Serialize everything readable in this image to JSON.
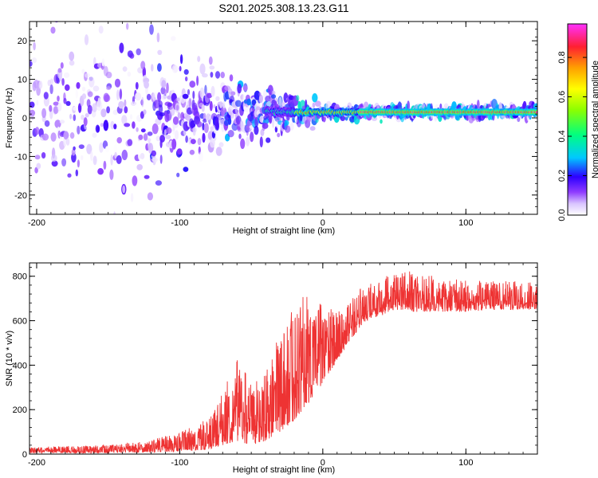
{
  "title": "S201.2025.308.13.23.G11",
  "chart_data": [
    {
      "type": "heatmap",
      "name": "spectrogram",
      "xlabel": "Height of straight line (km)",
      "ylabel": "Frequency (Hz)",
      "xlim": [
        -205,
        150
      ],
      "ylim": [
        -25,
        25
      ],
      "xticks": [
        -200,
        -100,
        0,
        100
      ],
      "xtick_labels": [
        "-200",
        "-100",
        "0",
        "100"
      ],
      "yticks": [
        -20,
        -10,
        0,
        10,
        20
      ],
      "ytick_labels": [
        "-20",
        "-10",
        "0",
        "10",
        "20"
      ],
      "colorbar": {
        "label": "Normalized spectral amplitude",
        "range": [
          0,
          0.97
        ],
        "ticks": [
          0.0,
          0.2,
          0.4,
          0.6,
          0.8
        ],
        "tick_labels": [
          "0.0",
          "0.2",
          "0.4",
          "0.6",
          "0.8"
        ],
        "colors": [
          "#ffffff",
          "#d9c4ff",
          "#8f3cff",
          "#2d00ff",
          "#00c8ff",
          "#00ff80",
          "#8cff00",
          "#ffff00",
          "#ffa000",
          "#ff2030",
          "#ff30ff"
        ]
      },
      "ridge": {
        "x_start": -20,
        "x_end": 150,
        "frequency": 1.5,
        "peak_amplitude": 0.9
      }
    },
    {
      "type": "line",
      "name": "snr",
      "xlabel": "Height of straight line (km)",
      "ylabel": "SNR (10 * v/v)",
      "xlim": [
        -205,
        150
      ],
      "ylim": [
        0,
        860
      ],
      "xticks": [
        -200,
        -100,
        0,
        100
      ],
      "xtick_labels": [
        "-200",
        "-100",
        "0",
        "100"
      ],
      "yticks": [
        0,
        200,
        400,
        600,
        800
      ],
      "ytick_labels": [
        "0",
        "200",
        "400",
        "600",
        "800"
      ],
      "color": "#ee3333",
      "envelope": {
        "x": [
          -205,
          -150,
          -120,
          -100,
          -80,
          -70,
          -60,
          -50,
          -40,
          -30,
          -20,
          -10,
          0,
          10,
          20,
          30,
          40,
          50,
          60,
          80,
          100,
          120,
          150
        ],
        "low": [
          5,
          5,
          8,
          10,
          20,
          40,
          60,
          40,
          60,
          100,
          150,
          230,
          320,
          420,
          520,
          600,
          620,
          650,
          640,
          640,
          640,
          650,
          650
        ],
        "high": [
          30,
          40,
          60,
          90,
          150,
          260,
          400,
          300,
          350,
          500,
          650,
          700,
          650,
          620,
          700,
          750,
          780,
          810,
          820,
          780,
          770,
          770,
          760
        ]
      }
    }
  ]
}
